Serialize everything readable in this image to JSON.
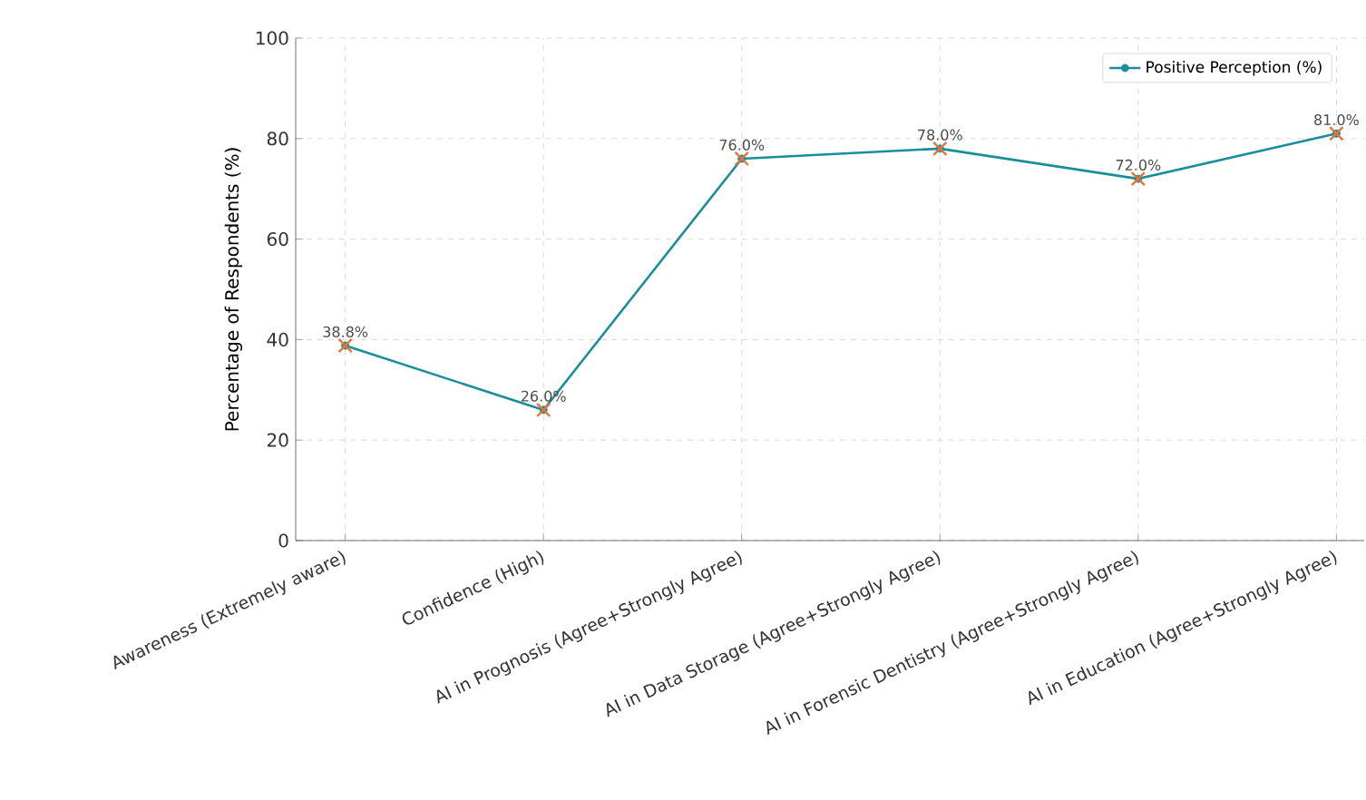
{
  "chart_data": {
    "type": "line",
    "ylabel": "Percentage of Respondents (%)",
    "categories": [
      "Awareness (Extremely aware)",
      "Confidence (High)",
      "AI in Prognosis (Agree+Strongly Agree)",
      "AI in Data Storage (Agree+Strongly Agree)",
      "AI in Forensic Dentistry (Agree+Strongly Agree)",
      "AI in Education (Agree+Strongly Agree)"
    ],
    "series": [
      {
        "name": "Positive Perception (%)",
        "color": "#1a8f9a",
        "marker": "circle",
        "values": [
          38.8,
          26.0,
          76.0,
          78.0,
          72.0,
          81.0
        ],
        "value_labels": [
          "38.8%",
          "26.0%",
          "76.0%",
          "78.0%",
          "72.0%",
          "81.0%"
        ]
      },
      {
        "type": "scatter",
        "color": "#e8733a",
        "marker": "cross",
        "values": [
          38.8,
          26.0,
          76.0,
          78.0,
          72.0,
          81.0
        ]
      }
    ],
    "ylim": [
      0,
      100
    ],
    "yticks": [
      0,
      20,
      40,
      60,
      80,
      100
    ],
    "grid": true,
    "legend": "top right"
  }
}
